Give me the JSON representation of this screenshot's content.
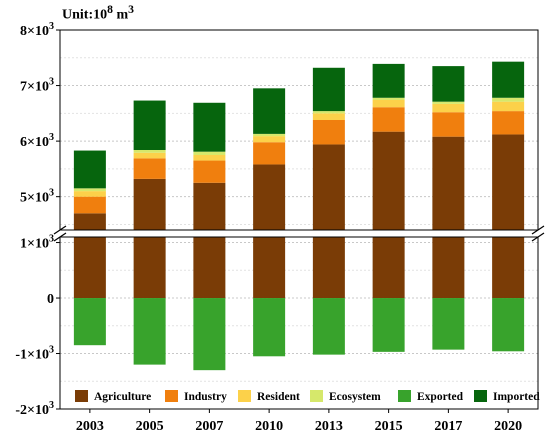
{
  "unit": {
    "prefix": "Unit:10",
    "exp": "8",
    "suffix": " m",
    "suffix_exp": "3"
  },
  "chart_data": {
    "type": "bar",
    "stacked": true,
    "broken_axis": true,
    "categories": [
      "2003",
      "2005",
      "2007",
      "2010",
      "2013",
      "2015",
      "2017",
      "2020"
    ],
    "upper_panel": {
      "ylim": [
        4400,
        8000
      ],
      "ticks": [
        {
          "value": 5000,
          "mant": "5×10",
          "exp": "3"
        },
        {
          "value": 6000,
          "mant": "6×10",
          "exp": "3"
        },
        {
          "value": 7000,
          "mant": "7×10",
          "exp": "3"
        },
        {
          "value": 8000,
          "mant": "8×10",
          "exp": "3"
        }
      ]
    },
    "lower_panel": {
      "ylim": [
        -2000,
        1100
      ],
      "ticks": [
        {
          "value": 1000,
          "mant": "1×10",
          "exp": "3"
        },
        {
          "value": 0,
          "mant": "0",
          "exp": ""
        },
        {
          "value": -1000,
          "mant": "-1×10",
          "exp": "3"
        },
        {
          "value": -2000,
          "mant": "-2×10",
          "exp": "3"
        }
      ]
    },
    "series": [
      {
        "name": "Agriculture",
        "color": "#7a3c06",
        "values": [
          4700,
          5320,
          5250,
          5580,
          5940,
          6170,
          6080,
          6120
        ]
      },
      {
        "name": "Industry",
        "color": "#f07f0e",
        "values": [
          300,
          370,
          400,
          400,
          440,
          440,
          440,
          420
        ]
      },
      {
        "name": "Resident",
        "color": "#fcd14a",
        "values": [
          100,
          100,
          100,
          110,
          120,
          130,
          150,
          170
        ]
      },
      {
        "name": "Ecosystem",
        "color": "#d6e86b",
        "values": [
          50,
          50,
          60,
          40,
          40,
          40,
          40,
          70
        ]
      },
      {
        "name": "Exported",
        "color": "#38a32c",
        "values": [
          -850,
          -1200,
          -1300,
          -1050,
          -1020,
          -970,
          -930,
          -960
        ]
      },
      {
        "name": "Imported",
        "color": "#06650d",
        "values": [
          680,
          890,
          880,
          820,
          780,
          610,
          640,
          650
        ]
      }
    ],
    "legend": "bottom-inside",
    "grid": "horizontal-dotted"
  }
}
